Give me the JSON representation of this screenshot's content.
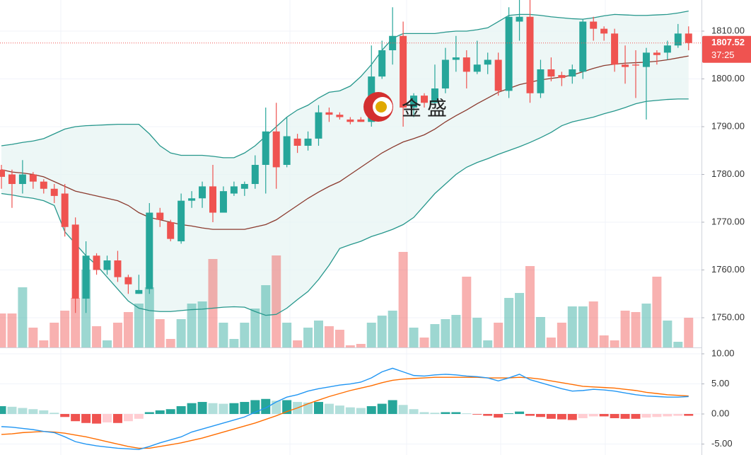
{
  "chart_data": [
    {
      "type": "candlestick",
      "open": [
        1781,
        1780,
        1778,
        1780,
        1778.5,
        1777,
        1776,
        1769.5,
        1754,
        1763,
        1760,
        1762,
        1758.5,
        1755,
        1756,
        1772,
        1770,
        1766,
        1774.5,
        1775,
        1777.5,
        1772,
        1776,
        1777,
        1778,
        1782,
        1789,
        1782,
        1787.5,
        1786,
        1787.5,
        1793,
        1792.5,
        1791.5,
        1791.5,
        1791,
        1800.5,
        1806,
        1809,
        1794,
        1796.5,
        1795,
        1798,
        1804,
        1804.5,
        1801.5,
        1803,
        1804,
        1797.5,
        1812,
        1813,
        1797,
        1802,
        1800.8,
        1800.5,
        1801.5,
        1812,
        1810.5,
        1809.5,
        1803,
        1803,
        1802.5,
        1805.5,
        1805.5,
        1807,
        1809.5
      ],
      "high": [
        1782,
        1781,
        1783,
        1780.5,
        1779,
        1778,
        1778,
        1771,
        1766,
        1763.5,
        1763,
        1764,
        1759,
        1759,
        1774,
        1773,
        1770.5,
        1776,
        1776.5,
        1778.5,
        1782,
        1777.5,
        1778.5,
        1778.5,
        1784,
        1794,
        1795,
        1792,
        1788.5,
        1789,
        1794.5,
        1794,
        1793,
        1792,
        1792,
        1807,
        1808,
        1815,
        1812,
        1797,
        1797,
        1803,
        1806.5,
        1809,
        1806,
        1808,
        1805.5,
        1805.5,
        1815,
        1817,
        1817,
        1804,
        1804.5,
        1801.5,
        1803,
        1812.5,
        1813,
        1811,
        1810.5,
        1807,
        1806,
        1806.5,
        1806,
        1808,
        1811.5,
        1811
      ],
      "low": [
        1777,
        1773,
        1776,
        1777,
        1776,
        1774,
        1767,
        1751,
        1751,
        1759,
        1759,
        1757.5,
        1755,
        1755,
        1755,
        1769,
        1766,
        1765.5,
        1773,
        1773,
        1770,
        1772,
        1775.5,
        1775.5,
        1777,
        1776,
        1777,
        1781.5,
        1784.5,
        1785,
        1786,
        1791,
        1791.5,
        1790.5,
        1791,
        1790,
        1800,
        1803,
        1790,
        1792,
        1794,
        1794.5,
        1797,
        1801.5,
        1798,
        1801,
        1801,
        1796.5,
        1796,
        1808,
        1795,
        1796,
        1799.5,
        1798.5,
        1799,
        1800,
        1808,
        1808,
        1801.5,
        1799,
        1796,
        1791.5,
        1803,
        1804,
        1806.5,
        1806
      ],
      "close": [
        1779.5,
        1778,
        1780,
        1778.5,
        1777,
        1775.5,
        1769,
        1754,
        1763,
        1760,
        1762,
        1758.5,
        1757,
        1755.8,
        1772,
        1770.5,
        1766.5,
        1774.5,
        1775,
        1777.5,
        1772,
        1776.5,
        1777.5,
        1778,
        1782,
        1789,
        1781.5,
        1788,
        1786,
        1787.5,
        1793,
        1792.5,
        1792,
        1791,
        1791,
        1800.5,
        1806,
        1809,
        1794,
        1796.5,
        1795,
        1798,
        1804,
        1804.5,
        1801.5,
        1803,
        1804,
        1797.5,
        1813,
        1813,
        1797,
        1802,
        1800.5,
        1800.2,
        1802,
        1812,
        1810.5,
        1809.5,
        1803,
        1802.5,
        1802.8,
        1805.5,
        1805,
        1807,
        1809.5,
        1807.52
      ],
      "volume": [
        48,
        48,
        85,
        28,
        10,
        35,
        52,
        70,
        110,
        30,
        10,
        35,
        50,
        62,
        85,
        40,
        12,
        40,
        62,
        65,
        125,
        35,
        12,
        35,
        55,
        88,
        130,
        35,
        10,
        28,
        38,
        30,
        25,
        3,
        5,
        35,
        45,
        52,
        135,
        28,
        14,
        33,
        40,
        46,
        100,
        42,
        10,
        35,
        70,
        77,
        115,
        43,
        14,
        35,
        58,
        58,
        65,
        17,
        10,
        52,
        50,
        62,
        100,
        38,
        8,
        42
      ],
      "bands": {
        "upper": [
          1786,
          1786.3,
          1786.7,
          1787,
          1787.5,
          1788.5,
          1789.5,
          1790,
          1790.2,
          1790.3,
          1790.4,
          1790.5,
          1790.5,
          1790.5,
          1788.5,
          1786,
          1784.5,
          1784,
          1784,
          1784,
          1783.8,
          1783.5,
          1783.5,
          1784.5,
          1786,
          1788,
          1790,
          1792,
          1793.5,
          1794.5,
          1796,
          1797.2,
          1797.5,
          1798.5,
          1800.5,
          1803,
          1806,
          1808.5,
          1809.5,
          1809.5,
          1809.5,
          1809.5,
          1809.8,
          1810,
          1810,
          1810.3,
          1810.7,
          1812,
          1813.3,
          1813.5,
          1813.5,
          1813.3,
          1813,
          1812.8,
          1812.6,
          1812.5,
          1812.8,
          1813.2,
          1813.5,
          1813.4,
          1813.3,
          1813.3,
          1813.4,
          1813.5,
          1813.8,
          1814.2
        ],
        "middle": [
          1781,
          1780.5,
          1780.3,
          1780,
          1779.5,
          1778.5,
          1777.5,
          1776.5,
          1776,
          1775.5,
          1775,
          1774.5,
          1773.5,
          1772,
          1771,
          1770.5,
          1770,
          1769.5,
          1769.2,
          1768.8,
          1768.5,
          1768.5,
          1768.5,
          1768.5,
          1769,
          1769.5,
          1770.5,
          1772,
          1773.5,
          1775,
          1776.3,
          1777.5,
          1778.5,
          1780,
          1781.5,
          1783,
          1784.5,
          1785.7,
          1786.8,
          1787.5,
          1788.3,
          1789.5,
          1791,
          1792.3,
          1793.5,
          1794.8,
          1796,
          1797.2,
          1798,
          1798.8,
          1799.3,
          1799.8,
          1800.1,
          1800.4,
          1800.8,
          1801.5,
          1802.2,
          1802.8,
          1803.1,
          1803.3,
          1803.4,
          1803.5,
          1803.7,
          1804,
          1804.4,
          1804.8
        ],
        "lower": [
          1776,
          1775.7,
          1775.3,
          1775,
          1774.5,
          1773.5,
          1768,
          1765.5,
          1763,
          1761,
          1758.5,
          1756,
          1753.5,
          1752,
          1751.5,
          1751.3,
          1751.3,
          1751.5,
          1751.7,
          1751.8,
          1752,
          1752.2,
          1752.3,
          1752.2,
          1751.3,
          1750.5,
          1750.7,
          1752,
          1753.8,
          1755.5,
          1758,
          1761,
          1764.5,
          1765.3,
          1766,
          1767,
          1767.7,
          1768.5,
          1769.5,
          1771,
          1773.5,
          1776,
          1778,
          1780,
          1781.5,
          1782.5,
          1783.3,
          1784.2,
          1785,
          1785.8,
          1786.7,
          1787.7,
          1788.8,
          1790.2,
          1791,
          1791.5,
          1792,
          1792.7,
          1793.3,
          1794,
          1794.8,
          1795.3,
          1795.5,
          1795.7,
          1795.8,
          1795.8
        ],
        "band_color": "#26978c",
        "middle_color": "#8b3a2e",
        "fill_color": "#e6f4f2"
      },
      "up_color": "#26a69a",
      "down_color": "#ef5350",
      "ylim": [
        1743.78,
        1816.52
      ],
      "yticks": [
        {
          "value": 1810,
          "label": "1810.00"
        },
        {
          "value": 1800,
          "label": "1800.00"
        },
        {
          "value": 1790,
          "label": "1790.00"
        },
        {
          "value": 1780,
          "label": "1780.00"
        },
        {
          "value": 1770,
          "label": "1770.00"
        },
        {
          "value": 1760,
          "label": "1760.00"
        },
        {
          "value": 1750,
          "label": "1750.00"
        }
      ],
      "last_price": 1807.52,
      "countdown": "37:25",
      "watermark": "金盛"
    },
    {
      "type": "macd",
      "histogram": [
        1.3,
        1.2,
        1.0,
        0.8,
        0.6,
        0.2,
        -0.5,
        -1.2,
        -1.5,
        -1.6,
        -1.4,
        -1.5,
        -1.2,
        -0.8,
        0.3,
        0.6,
        0.8,
        1.3,
        1.8,
        2.0,
        1.8,
        1.7,
        1.8,
        2.0,
        2.3,
        2.5,
        2.2,
        2.3,
        2.0,
        1.9,
        2.0,
        1.7,
        1.4,
        1.1,
        1.0,
        1.3,
        1.7,
        2.3,
        1.5,
        0.8,
        0.3,
        0.2,
        0.3,
        0.3,
        0.1,
        -0.1,
        -0.3,
        -0.6,
        0.1,
        0.4,
        -0.3,
        -0.5,
        -0.8,
        -0.9,
        -1.0,
        -0.7,
        -0.4,
        -0.4,
        -0.7,
        -0.8,
        -0.8,
        -0.6,
        -0.5,
        -0.4,
        -0.3,
        -0.3
      ],
      "macd": [
        -2.1,
        -2.2,
        -2.4,
        -2.6,
        -2.9,
        -3.1,
        -3.8,
        -4.6,
        -5.0,
        -5.3,
        -5.5,
        -5.7,
        -5.8,
        -5.9,
        -5.4,
        -4.8,
        -4.3,
        -3.8,
        -3.0,
        -2.5,
        -2.0,
        -1.5,
        -1.0,
        -0.5,
        0.3,
        1.0,
        2.0,
        2.8,
        3.2,
        3.8,
        4.2,
        4.5,
        4.8,
        5.0,
        5.3,
        6.0,
        7.0,
        7.6,
        7.0,
        6.4,
        6.3,
        6.5,
        6.6,
        6.5,
        6.3,
        6.2,
        6.0,
        5.5,
        6.0,
        6.6,
        5.7,
        5.2,
        4.7,
        4.2,
        3.8,
        3.9,
        4.1,
        4.0,
        3.8,
        3.5,
        3.2,
        3.0,
        2.9,
        2.8,
        2.8,
        2.9
      ],
      "signal": [
        -3.4,
        -3.3,
        -3.1,
        -3.0,
        -2.9,
        -3.0,
        -3.2,
        -3.5,
        -3.8,
        -4.2,
        -4.6,
        -5.0,
        -5.4,
        -5.7,
        -5.7,
        -5.4,
        -5.1,
        -4.8,
        -4.4,
        -4.0,
        -3.5,
        -3.0,
        -2.5,
        -2.0,
        -1.5,
        -0.9,
        -0.3,
        0.4,
        1.0,
        1.7,
        2.3,
        2.9,
        3.4,
        3.9,
        4.3,
        4.7,
        5.2,
        5.6,
        5.8,
        5.9,
        6.0,
        6.1,
        6.1,
        6.1,
        6.1,
        6.1,
        6.0,
        6.0,
        6.0,
        6.1,
        6.0,
        5.8,
        5.5,
        5.2,
        4.9,
        4.6,
        4.5,
        4.4,
        4.3,
        4.1,
        3.9,
        3.6,
        3.4,
        3.2,
        3.1,
        3.0
      ],
      "macd_color": "#2196f3",
      "signal_color": "#ff6d00",
      "histogram_colors": {
        "up_strong": "#26a69a",
        "up_weak": "#b2dfdb",
        "down_strong": "#ef5350",
        "down_weak": "#ffcdd2"
      },
      "ylim": [
        -6.82,
        11.06
      ],
      "yticks": [
        {
          "value": 10,
          "label": "10.00"
        },
        {
          "value": 5,
          "label": "5.00"
        },
        {
          "value": 0,
          "label": "0.00"
        },
        {
          "value": -5,
          "label": "-5.00"
        }
      ]
    }
  ]
}
